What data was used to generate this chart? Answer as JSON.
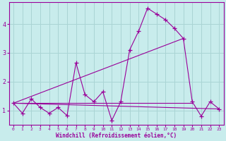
{
  "xlabel": "Windchill (Refroidissement éolien,°C)",
  "bg_color": "#c8ecec",
  "grid_color": "#aad4d4",
  "line_color": "#990099",
  "xlim": [
    -0.5,
    23.5
  ],
  "ylim": [
    0.5,
    4.75
  ],
  "xticks": [
    0,
    1,
    2,
    3,
    4,
    5,
    6,
    7,
    8,
    9,
    10,
    11,
    12,
    13,
    14,
    15,
    16,
    17,
    18,
    19,
    20,
    21,
    22,
    23
  ],
  "yticks": [
    1,
    2,
    3,
    4
  ],
  "series1_x": [
    0,
    1,
    2,
    3,
    4,
    5,
    6,
    7,
    8,
    9,
    10,
    11,
    12,
    13,
    14,
    15,
    16,
    17,
    18,
    19,
    20,
    21,
    22,
    23
  ],
  "series1_y": [
    1.25,
    0.9,
    1.4,
    1.1,
    0.9,
    1.1,
    0.82,
    2.65,
    1.55,
    1.3,
    1.65,
    0.65,
    1.3,
    3.1,
    3.75,
    4.55,
    4.35,
    4.15,
    3.85,
    3.5,
    1.3,
    0.8,
    1.3,
    1.05
  ],
  "series2_x": [
    0,
    20
  ],
  "series2_y": [
    1.25,
    1.25
  ],
  "series3_x": [
    0,
    19
  ],
  "series3_y": [
    1.25,
    3.5
  ],
  "series4_x": [
    0,
    23
  ],
  "series4_y": [
    1.25,
    1.05
  ]
}
